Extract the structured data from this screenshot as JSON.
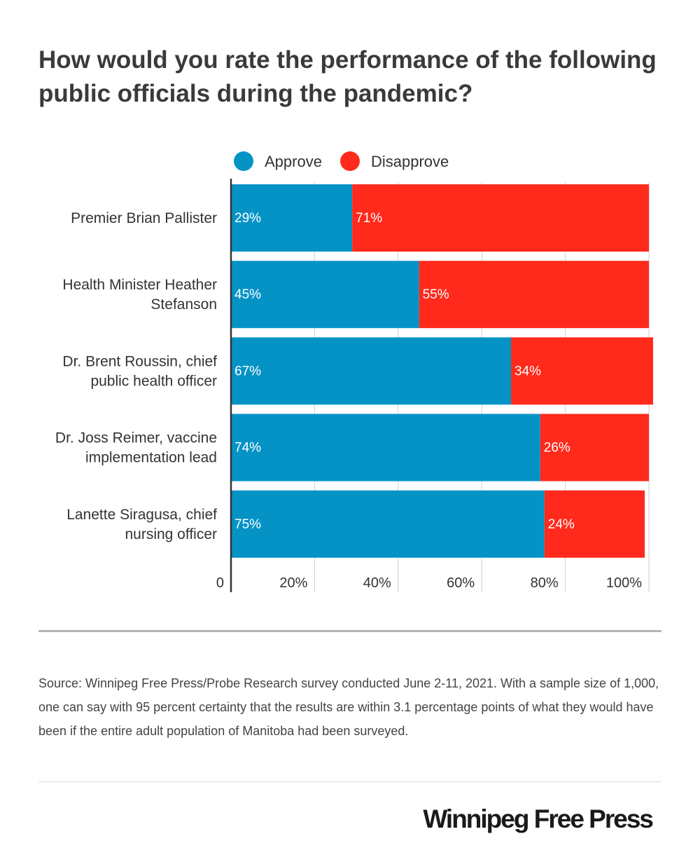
{
  "title": "How would you rate the performance of the following public officials during the pandemic?",
  "legend": [
    {
      "label": "Approve",
      "color": "#0593c6"
    },
    {
      "label": "Disapprove",
      "color": "#ff2a1c"
    }
  ],
  "chart_data": {
    "type": "bar",
    "orientation": "horizontal",
    "stacked": true,
    "categories": [
      "Premier Brian Pallister",
      "Health Minister Heather Stefanson",
      "Dr. Brent Roussin, chief public health officer",
      "Dr. Joss Reimer, vaccine implementation lead",
      "Lanette Siragusa, chief nursing officer"
    ],
    "category_lines": [
      [
        "Premier Brian Pallister"
      ],
      [
        "Health Minister Heather",
        "Stefanson"
      ],
      [
        "Dr. Brent Roussin, chief",
        "public health officer"
      ],
      [
        "Dr. Joss Reimer, vaccine",
        "implementation lead"
      ],
      [
        "Lanette Siragusa, chief",
        "nursing officer"
      ]
    ],
    "series": [
      {
        "name": "Approve",
        "color": "#0593c6",
        "values": [
          29,
          45,
          67,
          74,
          75
        ],
        "labels": [
          "29%",
          "45%",
          "67%",
          "74%",
          "75%"
        ]
      },
      {
        "name": "Disapprove",
        "color": "#ff2a1c",
        "values": [
          71,
          55,
          34,
          26,
          24
        ],
        "labels": [
          "71%",
          "55%",
          "34%",
          "26%",
          "24%"
        ]
      }
    ],
    "xlim": [
      0,
      101
    ],
    "x_ticks": [
      0,
      20,
      40,
      60,
      80,
      100
    ],
    "x_tick_labels": [
      "0",
      "20%",
      "40%",
      "60%",
      "80%",
      "100%"
    ],
    "grid": true,
    "legend_position": "top"
  },
  "source": "Source: Winnipeg Free Press/Probe Research survey conducted June 2-11, 2021. With a sample size of 1,000, one can say with 95 percent certainty that the results are within 3.1 percentage points of what they would have been if the entire adult population of Manitoba had been surveyed.",
  "brand": "Winnipeg Free Press"
}
